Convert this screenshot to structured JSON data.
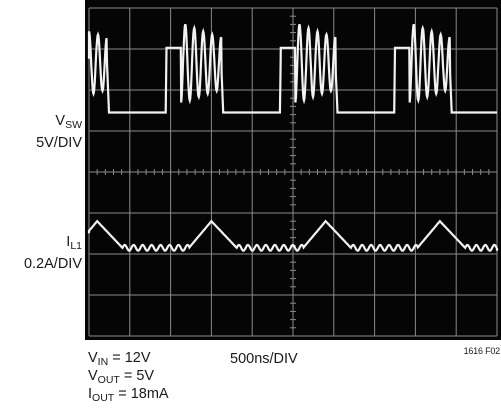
{
  "chart_data": {
    "type": "line",
    "instrument": "oscilloscope",
    "background": "#050505",
    "trace_color": "#f2f2f2",
    "grid_color": "#8a8a8a",
    "grid": true,
    "divisions": {
      "horizontal": 10,
      "vertical": 8
    },
    "timebase": "500ns/DIV",
    "figure_id": "1616 F02",
    "channels": [
      {
        "name_main": "V",
        "name_sub": "SW",
        "scale": "5V/DIV",
        "baseline_div": 5.75,
        "switching_period_div": 2.8,
        "low_level_div": -0.3,
        "high_level_div": 1.28,
        "ringing": {
          "mean_div": 0.9,
          "first_amplitude_div": 1.0,
          "period_div": 0.22,
          "cycles": 4.5
        }
      },
      {
        "name_main": "I",
        "name_sub": "L1",
        "scale": "0.2A/DIV",
        "baseline_div": 2.25,
        "switching_period_div": 2.8,
        "ramp_up_div": 0.55,
        "ramp_down_div": 0.62,
        "peak_div": 0.55,
        "valley_div": -0.1,
        "ripple_amplitude_div": 0.07,
        "ripple_period_div": 0.22
      }
    ]
  },
  "conditions": [
    {
      "main": "V",
      "sub": "IN",
      "rest": " = 12V"
    },
    {
      "main": "V",
      "sub": "OUT",
      "rest": " = 5V"
    },
    {
      "main": "I",
      "sub": "OUT",
      "rest": " = 18mA"
    }
  ]
}
